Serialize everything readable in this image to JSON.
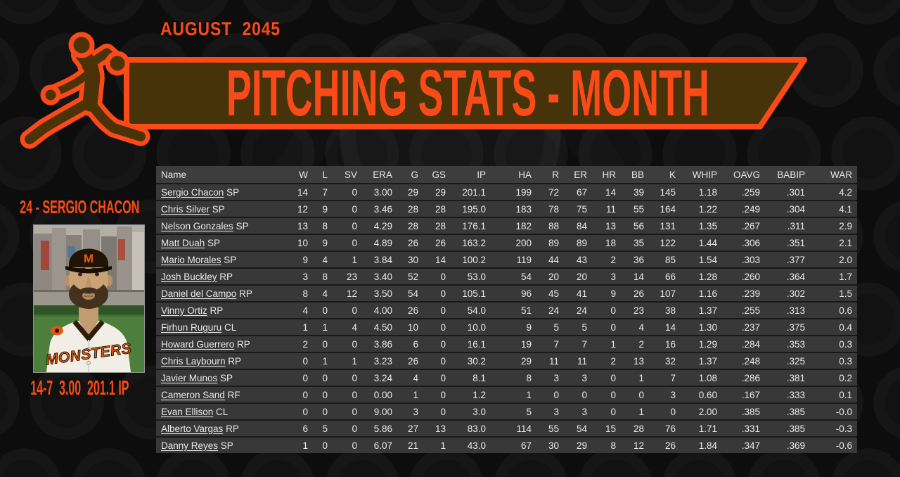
{
  "header": {
    "date": "AUGUST  2045",
    "title": "PITCHING STATS - MONTH"
  },
  "player_card": {
    "name_line": "24 - SERGIO CHACON",
    "stats_line": "14-7  3.00  201.1 IP",
    "jersey_text": "MONSTERS",
    "cap_letter": "M"
  },
  "colors": {
    "accent": "#fa4a18",
    "banner_fill": "#46330a",
    "table_header_bg": "#3d3d3d",
    "table_row_bg": "#383838"
  },
  "table": {
    "columns": [
      "Name",
      "W",
      "L",
      "SV",
      "ERA",
      "G",
      "GS",
      "IP",
      "HA",
      "R",
      "ER",
      "HR",
      "BB",
      "K",
      "WHIP",
      "OAVG",
      "BABIP",
      "WAR"
    ],
    "rows": [
      {
        "name": "Sergio Chacon",
        "pos": "SP",
        "stats": [
          "14",
          "7",
          "0",
          "3.00",
          "29",
          "29",
          "201.1",
          "199",
          "72",
          "67",
          "14",
          "39",
          "145",
          "1.18",
          ".259",
          ".301",
          "4.2"
        ]
      },
      {
        "name": "Chris Silver",
        "pos": "SP",
        "stats": [
          "12",
          "9",
          "0",
          "3.46",
          "28",
          "28",
          "195.0",
          "183",
          "78",
          "75",
          "11",
          "55",
          "164",
          "1.22",
          ".249",
          ".304",
          "4.1"
        ]
      },
      {
        "name": "Nelson Gonzales",
        "pos": "SP",
        "stats": [
          "13",
          "8",
          "0",
          "4.29",
          "28",
          "28",
          "176.1",
          "182",
          "88",
          "84",
          "13",
          "56",
          "131",
          "1.35",
          ".267",
          ".311",
          "2.9"
        ]
      },
      {
        "name": "Matt Duah",
        "pos": "SP",
        "stats": [
          "10",
          "9",
          "0",
          "4.89",
          "26",
          "26",
          "163.2",
          "200",
          "89",
          "89",
          "18",
          "35",
          "122",
          "1.44",
          ".306",
          ".351",
          "2.1"
        ]
      },
      {
        "name": "Mario Morales",
        "pos": "SP",
        "stats": [
          "9",
          "4",
          "1",
          "3.84",
          "30",
          "14",
          "100.2",
          "119",
          "44",
          "43",
          "2",
          "36",
          "85",
          "1.54",
          ".303",
          ".377",
          "2.0"
        ]
      },
      {
        "name": "Josh Buckley",
        "pos": "RP",
        "stats": [
          "3",
          "8",
          "23",
          "3.40",
          "52",
          "0",
          "53.0",
          "54",
          "20",
          "20",
          "3",
          "14",
          "66",
          "1.28",
          ".260",
          ".364",
          "1.7"
        ]
      },
      {
        "name": "Daniel del Campo",
        "pos": "RP",
        "stats": [
          "8",
          "4",
          "12",
          "3.50",
          "54",
          "0",
          "105.1",
          "96",
          "45",
          "41",
          "9",
          "26",
          "107",
          "1.16",
          ".239",
          ".302",
          "1.5"
        ]
      },
      {
        "name": "Vinny Ortiz",
        "pos": "RP",
        "stats": [
          "4",
          "0",
          "0",
          "4.00",
          "26",
          "0",
          "54.0",
          "51",
          "24",
          "24",
          "0",
          "23",
          "38",
          "1.37",
          ".255",
          ".313",
          "0.6"
        ]
      },
      {
        "name": "Firhun Ruguru",
        "pos": "CL",
        "stats": [
          "1",
          "1",
          "4",
          "4.50",
          "10",
          "0",
          "10.0",
          "9",
          "5",
          "5",
          "0",
          "4",
          "14",
          "1.30",
          ".237",
          ".375",
          "0.4"
        ]
      },
      {
        "name": "Howard Guerrero",
        "pos": "RP",
        "stats": [
          "2",
          "0",
          "0",
          "3.86",
          "6",
          "0",
          "16.1",
          "19",
          "7",
          "7",
          "1",
          "2",
          "16",
          "1.29",
          ".284",
          ".353",
          "0.3"
        ]
      },
      {
        "name": "Chris Laybourn",
        "pos": "RP",
        "stats": [
          "0",
          "1",
          "1",
          "3.23",
          "26",
          "0",
          "30.2",
          "29",
          "11",
          "11",
          "2",
          "13",
          "32",
          "1.37",
          ".248",
          ".325",
          "0.3"
        ]
      },
      {
        "name": "Javier Munos",
        "pos": "SP",
        "stats": [
          "0",
          "0",
          "0",
          "3.24",
          "4",
          "0",
          "8.1",
          "8",
          "3",
          "3",
          "0",
          "1",
          "7",
          "1.08",
          ".286",
          ".381",
          "0.2"
        ]
      },
      {
        "name": "Cameron Sand",
        "pos": "RF",
        "stats": [
          "0",
          "0",
          "0",
          "0.00",
          "1",
          "0",
          "1.2",
          "1",
          "0",
          "0",
          "0",
          "0",
          "3",
          "0.60",
          ".167",
          ".333",
          "0.1"
        ]
      },
      {
        "name": "Evan Ellison",
        "pos": "CL",
        "stats": [
          "0",
          "0",
          "0",
          "9.00",
          "3",
          "0",
          "3.0",
          "5",
          "3",
          "3",
          "0",
          "1",
          "0",
          "2.00",
          ".385",
          ".385",
          "-0.0"
        ]
      },
      {
        "name": "Alberto Vargas",
        "pos": "RP",
        "stats": [
          "6",
          "5",
          "0",
          "5.86",
          "27",
          "13",
          "83.0",
          "114",
          "55",
          "54",
          "15",
          "28",
          "76",
          "1.71",
          ".331",
          ".385",
          "-0.3"
        ]
      },
      {
        "name": "Danny Reyes",
        "pos": "SP",
        "stats": [
          "1",
          "0",
          "0",
          "6.07",
          "21",
          "1",
          "43.0",
          "67",
          "30",
          "29",
          "8",
          "12",
          "26",
          "1.84",
          ".347",
          ".369",
          "-0.6"
        ]
      }
    ]
  }
}
